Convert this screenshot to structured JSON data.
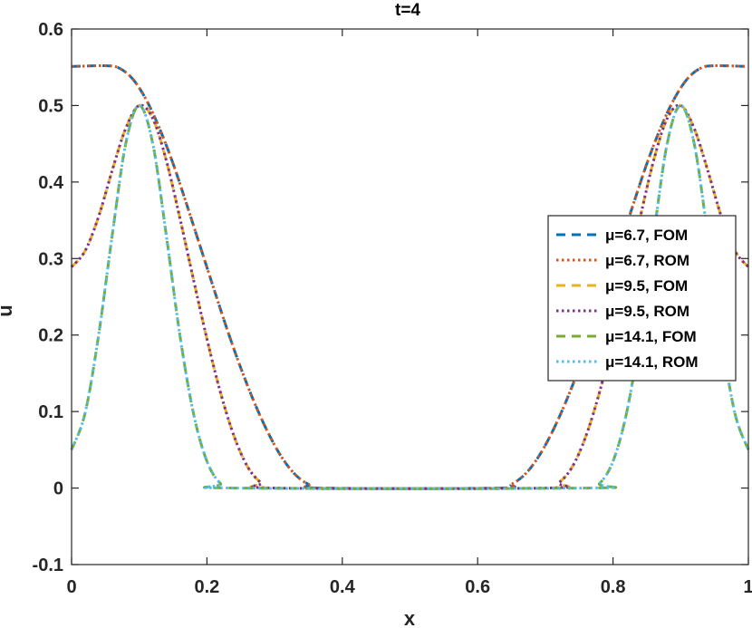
{
  "chart_data": {
    "type": "line",
    "title": "t=4",
    "xlabel": "x",
    "ylabel": "u",
    "xlim": [
      0,
      1
    ],
    "ylim": [
      -0.1,
      0.6
    ],
    "xticks": [
      0,
      0.2,
      0.4,
      0.6,
      0.8,
      1
    ],
    "xtick_labels": [
      "0",
      "0.2",
      "0.4",
      "0.6",
      "0.8",
      "1"
    ],
    "yticks": [
      -0.1,
      0,
      0.1,
      0.2,
      0.3,
      0.4,
      0.5,
      0.6
    ],
    "ytick_labels": [
      "-0.1",
      "0",
      "0.1",
      "0.2",
      "0.3",
      "0.4",
      "0.5",
      "0.6"
    ],
    "grid": false,
    "legend_position": "right",
    "series": [
      {
        "name": "μ=6.7, FOM",
        "mu": "6.7",
        "kind": "FOM",
        "color": "#0072BD",
        "dash": "dashed",
        "x": [
          0,
          0.05,
          0.07,
          0.09,
          0.11,
          0.13,
          0.15,
          0.17,
          0.19,
          0.21,
          0.23,
          0.25,
          0.27,
          0.29,
          0.31,
          0.33,
          0.35,
          0.37,
          0.63,
          0.65,
          0.67,
          0.69,
          0.71,
          0.73,
          0.75,
          0.77,
          0.79,
          0.81,
          0.83,
          0.85,
          0.87,
          0.89,
          0.91,
          0.93,
          0.95,
          1
        ],
        "y": [
          0.551,
          0.552,
          0.549,
          0.535,
          0.508,
          0.47,
          0.424,
          0.371,
          0.316,
          0.261,
          0.207,
          0.157,
          0.112,
          0.073,
          0.041,
          0.018,
          0.005,
          0,
          0,
          0.005,
          0.018,
          0.041,
          0.073,
          0.112,
          0.157,
          0.207,
          0.261,
          0.316,
          0.371,
          0.424,
          0.47,
          0.508,
          0.535,
          0.549,
          0.552,
          0.551
        ]
      },
      {
        "name": "μ=6.7, ROM",
        "mu": "6.7",
        "kind": "ROM",
        "color": "#D95319",
        "dash": "dotted",
        "x": [
          0,
          0.05,
          0.07,
          0.09,
          0.11,
          0.13,
          0.15,
          0.17,
          0.19,
          0.21,
          0.23,
          0.25,
          0.27,
          0.29,
          0.31,
          0.33,
          0.35,
          0.37,
          0.63,
          0.65,
          0.67,
          0.69,
          0.71,
          0.73,
          0.75,
          0.77,
          0.79,
          0.81,
          0.83,
          0.85,
          0.87,
          0.89,
          0.91,
          0.93,
          0.95,
          1
        ],
        "y": [
          0.551,
          0.552,
          0.549,
          0.535,
          0.508,
          0.47,
          0.424,
          0.371,
          0.316,
          0.261,
          0.207,
          0.157,
          0.112,
          0.073,
          0.041,
          0.018,
          0.005,
          0,
          0,
          0.005,
          0.018,
          0.041,
          0.073,
          0.112,
          0.157,
          0.207,
          0.261,
          0.316,
          0.371,
          0.424,
          0.47,
          0.508,
          0.535,
          0.549,
          0.552,
          0.551
        ]
      },
      {
        "name": "μ=9.5, FOM",
        "mu": "9.5",
        "kind": "FOM",
        "color": "#EDB120",
        "dash": "dashed",
        "x": [
          0,
          0.02,
          0.04,
          0.06,
          0.08,
          0.1,
          0.12,
          0.14,
          0.16,
          0.18,
          0.2,
          0.22,
          0.24,
          0.26,
          0.28,
          0.3,
          0.7,
          0.72,
          0.74,
          0.76,
          0.78,
          0.8,
          0.82,
          0.84,
          0.86,
          0.88,
          0.9,
          0.92,
          0.94,
          0.96,
          0.98,
          1
        ],
        "y": [
          0.289,
          0.31,
          0.355,
          0.415,
          0.47,
          0.5,
          0.483,
          0.428,
          0.353,
          0.273,
          0.195,
          0.125,
          0.068,
          0.028,
          0.007,
          0,
          0,
          0.007,
          0.028,
          0.068,
          0.125,
          0.195,
          0.273,
          0.353,
          0.428,
          0.483,
          0.5,
          0.47,
          0.415,
          0.355,
          0.31,
          0.289
        ]
      },
      {
        "name": "μ=9.5, ROM",
        "mu": "9.5",
        "kind": "ROM",
        "color": "#7E2F8E",
        "dash": "dotted",
        "x": [
          0,
          0.02,
          0.04,
          0.06,
          0.08,
          0.1,
          0.12,
          0.14,
          0.16,
          0.18,
          0.2,
          0.22,
          0.24,
          0.26,
          0.28,
          0.3,
          0.7,
          0.72,
          0.74,
          0.76,
          0.78,
          0.8,
          0.82,
          0.84,
          0.86,
          0.88,
          0.9,
          0.92,
          0.94,
          0.96,
          0.98,
          1
        ],
        "y": [
          0.289,
          0.31,
          0.355,
          0.415,
          0.47,
          0.5,
          0.483,
          0.428,
          0.353,
          0.273,
          0.195,
          0.125,
          0.068,
          0.028,
          0.007,
          0,
          0,
          0.007,
          0.028,
          0.068,
          0.125,
          0.195,
          0.273,
          0.353,
          0.428,
          0.483,
          0.5,
          0.47,
          0.415,
          0.355,
          0.31,
          0.289
        ]
      },
      {
        "name": "μ=14.1, FOM",
        "mu": "14.1",
        "kind": "FOM",
        "color": "#77AC30",
        "dash": "dashed",
        "x": [
          0,
          0.02,
          0.04,
          0.06,
          0.08,
          0.1,
          0.12,
          0.14,
          0.16,
          0.18,
          0.2,
          0.22,
          0.24,
          0.76,
          0.78,
          0.8,
          0.82,
          0.84,
          0.86,
          0.88,
          0.9,
          0.92,
          0.94,
          0.96,
          0.98,
          1
        ],
        "y": [
          0.05,
          0.098,
          0.2,
          0.33,
          0.45,
          0.5,
          0.45,
          0.33,
          0.2,
          0.098,
          0.035,
          0.006,
          0,
          0,
          0.006,
          0.035,
          0.098,
          0.2,
          0.33,
          0.45,
          0.5,
          0.45,
          0.33,
          0.2,
          0.098,
          0.05
        ]
      },
      {
        "name": "μ=14.1, ROM",
        "mu": "14.1",
        "kind": "ROM",
        "color": "#4DBEEE",
        "dash": "dotted",
        "x": [
          0,
          0.02,
          0.04,
          0.06,
          0.08,
          0.1,
          0.12,
          0.14,
          0.16,
          0.18,
          0.2,
          0.22,
          0.24,
          0.76,
          0.78,
          0.8,
          0.82,
          0.84,
          0.86,
          0.88,
          0.9,
          0.92,
          0.94,
          0.96,
          0.98,
          1
        ],
        "y": [
          0.05,
          0.098,
          0.2,
          0.33,
          0.45,
          0.5,
          0.45,
          0.33,
          0.2,
          0.098,
          0.035,
          0.006,
          0,
          0,
          0.006,
          0.035,
          0.098,
          0.2,
          0.33,
          0.45,
          0.5,
          0.45,
          0.33,
          0.2,
          0.098,
          0.05
        ]
      }
    ]
  }
}
